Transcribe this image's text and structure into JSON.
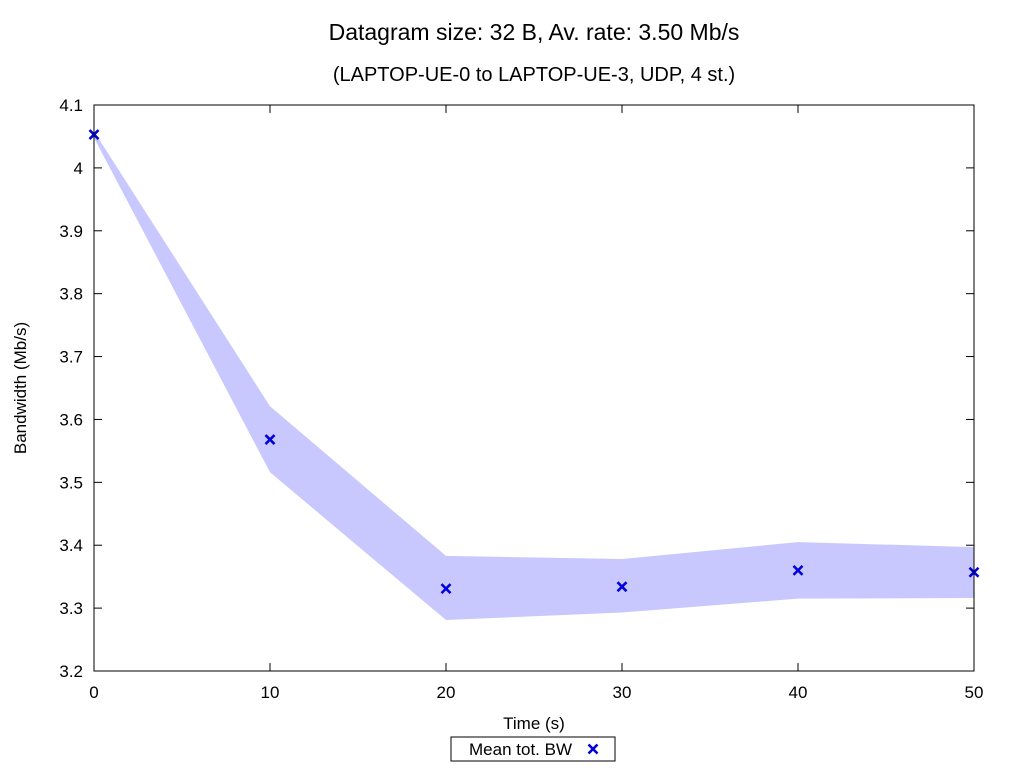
{
  "chart_data": {
    "type": "line",
    "title": "Datagram size: 32 B, Av. rate: 3.50 Mb/s",
    "subtitle": "(LAPTOP-UE-0 to LAPTOP-UE-3, UDP, 4 st.)",
    "xlabel": "Time (s)",
    "ylabel": "Bandwidth (Mb/s)",
    "xlim": [
      0,
      50
    ],
    "ylim": [
      3.2,
      4.1
    ],
    "xticks": [
      0,
      10,
      20,
      30,
      40,
      50
    ],
    "xtick_labels": [
      "0",
      "10",
      "20",
      "30",
      "40",
      "50"
    ],
    "yticks": [
      3.2,
      3.3,
      3.4,
      3.5,
      3.6,
      3.7,
      3.8,
      3.9,
      4.0,
      4.1
    ],
    "ytick_labels": [
      "3.2",
      "3.3",
      "3.4",
      "3.5",
      "3.6",
      "3.7",
      "3.8",
      "3.9",
      "4",
      "4.1"
    ],
    "grid": false,
    "legend_position": "bottom-center",
    "series": [
      {
        "name": "Mean tot. BW",
        "marker": "x",
        "color": "#0000dd",
        "x": [
          0,
          10,
          20,
          30,
          40,
          50
        ],
        "y": [
          4.053,
          3.568,
          3.331,
          3.334,
          3.36,
          3.357
        ]
      }
    ],
    "band": {
      "color": "#c8c8ff",
      "x": [
        0,
        10,
        20,
        30,
        40,
        50
      ],
      "upper": [
        4.058,
        3.621,
        3.383,
        3.378,
        3.405,
        3.397
      ],
      "lower": [
        4.048,
        3.516,
        3.281,
        3.293,
        3.315,
        3.316
      ]
    }
  }
}
